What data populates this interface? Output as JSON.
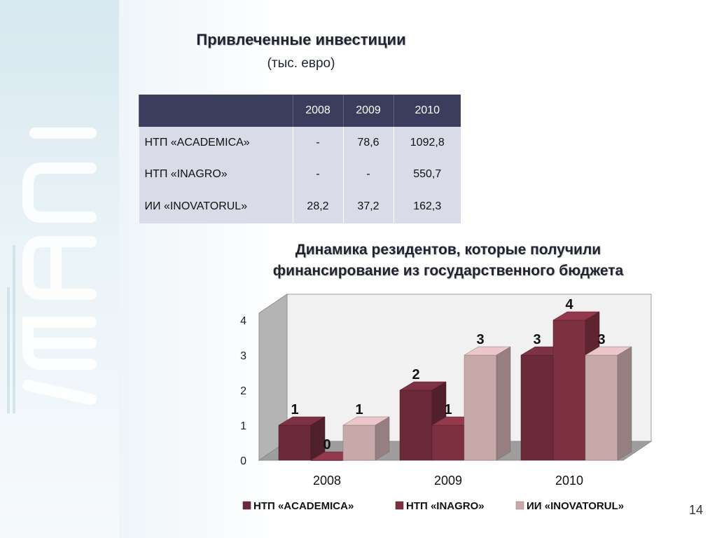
{
  "slide": {
    "title": "Привлеченные инвестиции",
    "subtitle": "(тыс. евро)",
    "page_number": "14"
  },
  "table": {
    "header": [
      "",
      "2008",
      "2009",
      "2010"
    ],
    "rows": [
      [
        "НТП «ACADEMICA»",
        "-",
        "78,6",
        "1092,8"
      ],
      [
        "НТП «INAGRO»",
        "-",
        "-",
        "550,7"
      ],
      [
        "ИИ «INOVATORUL»",
        "28,2",
        "37,2",
        "162,3"
      ]
    ]
  },
  "chart_title_lines": [
    "Динамика резидентов, которые получили",
    "финансирование из государственного бюджета"
  ],
  "chart_data": {
    "type": "bar",
    "title": "Динамика резидентов, которые получили финансирование из государственного бюджета",
    "categories": [
      "2008",
      "2009",
      "2010"
    ],
    "series": [
      {
        "name": "НТП «ACADEMICA»",
        "values": [
          1,
          2,
          3
        ],
        "color": "#6b2a3a"
      },
      {
        "name": "НТП «INAGRO»",
        "values": [
          0,
          1,
          4
        ],
        "color": "#7d3040"
      },
      {
        "name": "ИИ «INOVATORUL»",
        "values": [
          1,
          3,
          3
        ],
        "color": "#c8a9aa"
      }
    ],
    "ylim": [
      0,
      4
    ],
    "yticks": [
      "0",
      "1",
      "2",
      "3",
      "4"
    ],
    "grid": false,
    "legend": "bottom"
  }
}
